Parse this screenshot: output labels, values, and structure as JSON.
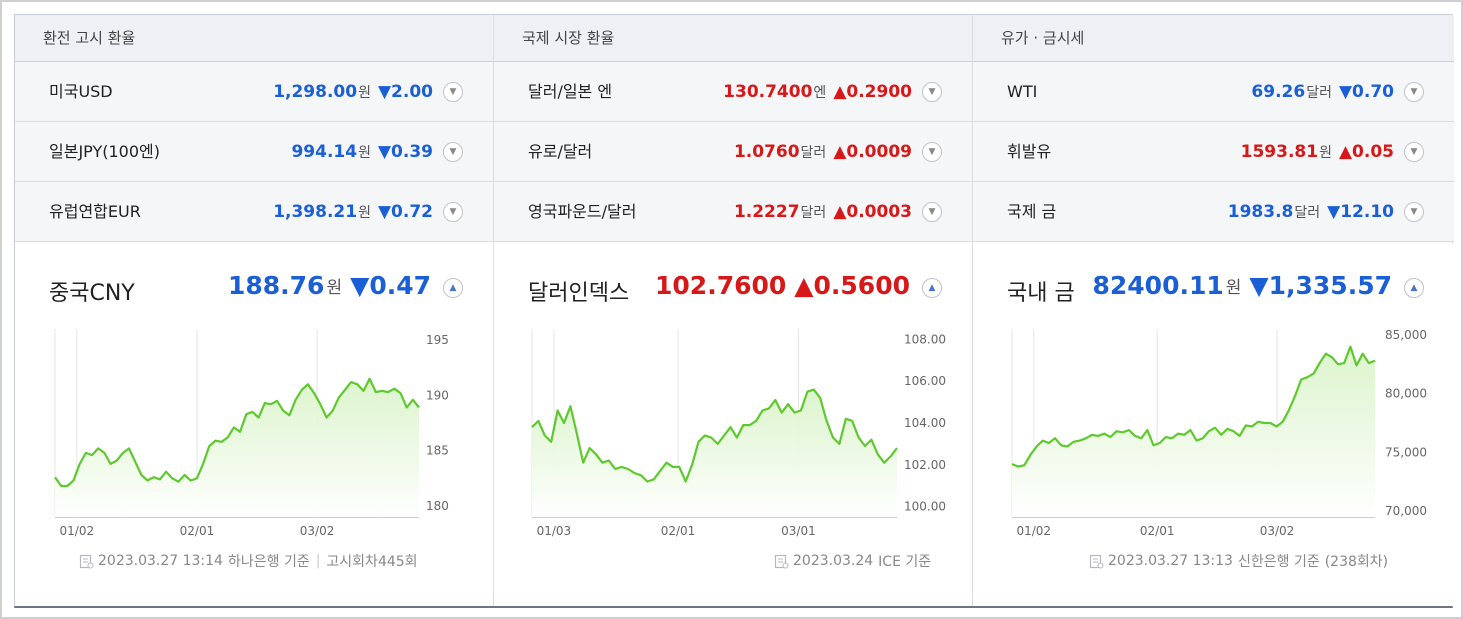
{
  "columns": [
    {
      "title": "환전 고시 환율",
      "rows": [
        {
          "name": "미국USD",
          "value": "1,298.00",
          "unit": "원",
          "arrow": "▼",
          "change": "2.00",
          "dir": "down"
        },
        {
          "name": "일본JPY(100엔)",
          "value": "994.14",
          "unit": "원",
          "arrow": "▼",
          "change": "0.39",
          "dir": "down"
        },
        {
          "name": "유럽연합EUR",
          "value": "1,398.21",
          "unit": "원",
          "arrow": "▼",
          "change": "0.72",
          "dir": "down"
        }
      ],
      "featured": {
        "name": "중국CNY",
        "value": "188.76",
        "unit": "원",
        "arrow": "▼",
        "change": "0.47",
        "dir": "down"
      },
      "footer": {
        "date": "2023.03.27 13:14",
        "source": "하나은행 기준",
        "extra": "고시회차445회"
      }
    },
    {
      "title": "국제 시장 환율",
      "rows": [
        {
          "name": "달러/일본 엔",
          "value": "130.7400",
          "unit": "엔",
          "arrow": "▲",
          "change": "0.2900",
          "dir": "up"
        },
        {
          "name": "유로/달러",
          "value": "1.0760",
          "unit": "달러",
          "arrow": "▲",
          "change": "0.0009",
          "dir": "up"
        },
        {
          "name": "영국파운드/달러",
          "value": "1.2227",
          "unit": "달러",
          "arrow": "▲",
          "change": "0.0003",
          "dir": "up"
        }
      ],
      "featured": {
        "name": "달러인덱스",
        "value": "102.7600",
        "unit": "",
        "arrow": "▲",
        "change": "0.5600",
        "dir": "up"
      },
      "footer": {
        "date": "2023.03.24",
        "source": "ICE 기준",
        "extra": ""
      }
    },
    {
      "title": "유가 · 금시세",
      "rows": [
        {
          "name": "WTI",
          "value": "69.26",
          "unit": "달러",
          "arrow": "▼",
          "change": "0.70",
          "dir": "down"
        },
        {
          "name": "휘발유",
          "value": "1593.81",
          "unit": "원",
          "arrow": "▲",
          "change": "0.05",
          "dir": "up"
        },
        {
          "name": "국제 금",
          "value": "1983.8",
          "unit": "달러",
          "arrow": "▼",
          "change": "12.10",
          "dir": "down"
        }
      ],
      "featured": {
        "name": "국내 금",
        "value": "82400.11",
        "unit": "원",
        "arrow": "▼",
        "change": "1,335.57",
        "dir": "down"
      },
      "footer": {
        "date": "2023.03.27 13:13",
        "source": "신한은행 기준",
        "extra": "(238회차)"
      }
    }
  ],
  "colors": {
    "up": "#d81818",
    "down": "#1a5fd6",
    "line": "#5ec92d",
    "fill": "#d9f3c8"
  },
  "icons": {
    "toggle_collapsed": "chevron-down-icon",
    "toggle_expanded": "chevron-up-icon",
    "footer": "document-icon"
  },
  "chart_data": [
    {
      "type": "area",
      "title": "중국CNY",
      "x_ticks": [
        "01/02",
        "02/01",
        "03/02"
      ],
      "y_ticks": [
        "180",
        "185",
        "190",
        "195"
      ],
      "ylim": [
        179,
        196
      ],
      "grid": "vertical",
      "x": [
        0,
        1,
        2,
        3,
        4,
        5,
        6,
        7,
        8,
        9,
        10,
        11,
        12,
        13,
        14,
        15,
        16,
        17,
        18,
        19,
        20,
        21,
        22,
        23,
        24,
        25,
        26,
        27,
        28,
        29,
        30,
        31,
        32,
        33,
        34,
        35,
        36,
        37,
        38,
        39,
        40,
        41,
        42,
        43,
        44,
        45,
        46,
        47,
        48,
        49,
        50,
        51,
        52,
        53,
        54,
        55,
        56,
        57,
        58,
        59
      ],
      "values": [
        182.6,
        181.8,
        181.8,
        182.3,
        183.8,
        184.8,
        184.6,
        185.2,
        184.8,
        183.8,
        184.1,
        184.8,
        185.2,
        184.0,
        182.8,
        182.3,
        182.6,
        182.4,
        183.1,
        182.5,
        182.2,
        182.8,
        182.3,
        182.5,
        183.8,
        185.4,
        185.9,
        185.8,
        186.2,
        187.1,
        186.7,
        188.3,
        188.5,
        188.0,
        189.3,
        189.2,
        189.5,
        188.6,
        188.2,
        189.6,
        190.5,
        191.0,
        190.2,
        189.2,
        188.0,
        188.6,
        189.8,
        190.5,
        191.2,
        191.0,
        190.4,
        191.5,
        190.3,
        190.4,
        190.3,
        190.6,
        190.2,
        188.9,
        189.6,
        188.9
      ]
    },
    {
      "type": "area",
      "title": "달러인덱스",
      "x_ticks": [
        "01/03",
        "02/01",
        "03/01"
      ],
      "y_ticks": [
        "100.00",
        "102.00",
        "104.00",
        "106.00",
        "108.00"
      ],
      "ylim": [
        99.5,
        108.5
      ],
      "grid": "vertical",
      "x": [
        0,
        1,
        2,
        3,
        4,
        5,
        6,
        7,
        8,
        9,
        10,
        11,
        12,
        13,
        14,
        15,
        16,
        17,
        18,
        19,
        20,
        21,
        22,
        23,
        24,
        25,
        26,
        27,
        28,
        29,
        30,
        31,
        32,
        33,
        34,
        35,
        36,
        37,
        38,
        39,
        40,
        41,
        42,
        43,
        44,
        45,
        46,
        47,
        48,
        49,
        50,
        51,
        52,
        53,
        54,
        55,
        56,
        57
      ],
      "values": [
        103.8,
        104.1,
        103.4,
        103.1,
        104.6,
        104.0,
        104.8,
        103.5,
        102.1,
        102.8,
        102.5,
        102.1,
        102.2,
        101.8,
        101.9,
        101.8,
        101.6,
        101.5,
        101.2,
        101.3,
        101.7,
        102.1,
        101.9,
        101.9,
        101.2,
        102.0,
        103.1,
        103.4,
        103.3,
        103.0,
        103.4,
        103.8,
        103.3,
        103.9,
        103.9,
        104.1,
        104.6,
        104.7,
        105.1,
        104.5,
        104.9,
        104.5,
        104.6,
        105.5,
        105.6,
        105.2,
        104.1,
        103.3,
        103.0,
        104.2,
        104.1,
        103.3,
        102.9,
        103.2,
        102.5,
        102.1,
        102.4,
        102.8
      ]
    },
    {
      "type": "area",
      "title": "국내 금",
      "x_ticks": [
        "01/02",
        "02/01",
        "03/02"
      ],
      "y_ticks": [
        "70,000",
        "75,000",
        "80,000",
        "85,000"
      ],
      "ylim": [
        69500,
        85500
      ],
      "grid": "vertical",
      "x": [
        0,
        1,
        2,
        3,
        4,
        5,
        6,
        7,
        8,
        9,
        10,
        11,
        12,
        13,
        14,
        15,
        16,
        17,
        18,
        19,
        20,
        21,
        22,
        23,
        24,
        25,
        26,
        27,
        28,
        29,
        30,
        31,
        32,
        33,
        34,
        35,
        36,
        37,
        38,
        39,
        40,
        41,
        42,
        43,
        44,
        45,
        46,
        47,
        48,
        49,
        50,
        51,
        52,
        53,
        54,
        55,
        56,
        57,
        58,
        59
      ],
      "values": [
        74000,
        73800,
        73900,
        74800,
        75500,
        76000,
        75800,
        76200,
        75600,
        75500,
        75900,
        76000,
        76200,
        76500,
        76400,
        76600,
        76300,
        76800,
        76700,
        76900,
        76400,
        76200,
        76900,
        75600,
        75800,
        76300,
        76200,
        76600,
        76500,
        76900,
        76000,
        76200,
        76800,
        77100,
        76500,
        77000,
        76800,
        76400,
        77300,
        77200,
        77600,
        77500,
        77500,
        77200,
        77600,
        78600,
        79800,
        81200,
        81400,
        81700,
        82600,
        83400,
        83100,
        82500,
        82600,
        84000,
        82400,
        83400,
        82600,
        82800
      ]
    }
  ]
}
